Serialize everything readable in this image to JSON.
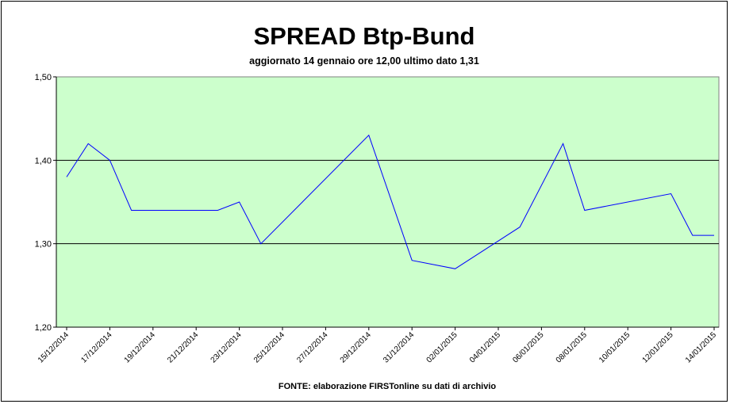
{
  "chart_data": {
    "type": "line",
    "title": "SPREAD Btp-Bund",
    "subtitle": "aggiornato 14 gennaio ore 12,00  ultimo dato  1,31",
    "source": "FONTE: elaborazione FIRSTonline su dati di archivio",
    "xlabel": "",
    "ylabel": "",
    "ylim": [
      1.2,
      1.5
    ],
    "y_ticks": [
      "1,20",
      "1,30",
      "1,40",
      "1,50"
    ],
    "y_tick_values": [
      1.2,
      1.3,
      1.4,
      1.5
    ],
    "gridlines_at": [
      1.3,
      1.4
    ],
    "x_tick_labels": [
      "15/12/2014",
      "17/12/2014",
      "19/12/2014",
      "21/12/2014",
      "23/12/2014",
      "25/12/2014",
      "27/12/2014",
      "29/12/2014",
      "31/12/2014",
      "02/01/2015",
      "04/01/2015",
      "06/01/2015",
      "08/01/2015",
      "10/01/2015",
      "12/01/2015",
      "14/01/2015"
    ],
    "grid": true,
    "legend": "none",
    "colors": {
      "plot_background": "#ccffcc",
      "line": "#0000ff",
      "gridline": "#000000"
    },
    "series": [
      {
        "values": [
          {
            "x": "15/12/2014",
            "y": 1.38
          },
          {
            "x": "16/12/2014",
            "y": 1.42
          },
          {
            "x": "17/12/2014",
            "y": 1.4
          },
          {
            "x": "18/12/2014",
            "y": 1.34
          },
          {
            "x": "22/12/2014",
            "y": 1.34
          },
          {
            "x": "23/12/2014",
            "y": 1.35
          },
          {
            "x": "24/12/2014",
            "y": 1.3
          },
          {
            "x": "29/12/2014",
            "y": 1.43
          },
          {
            "x": "31/12/2014",
            "y": 1.28
          },
          {
            "x": "02/01/2015",
            "y": 1.27
          },
          {
            "x": "05/01/2015",
            "y": 1.32
          },
          {
            "x": "07/01/2015",
            "y": 1.42
          },
          {
            "x": "08/01/2015",
            "y": 1.34
          },
          {
            "x": "12/01/2015",
            "y": 1.36
          },
          {
            "x": "13/01/2015",
            "y": 1.31
          },
          {
            "x": "14/01/2015",
            "y": 1.31
          }
        ]
      }
    ]
  }
}
